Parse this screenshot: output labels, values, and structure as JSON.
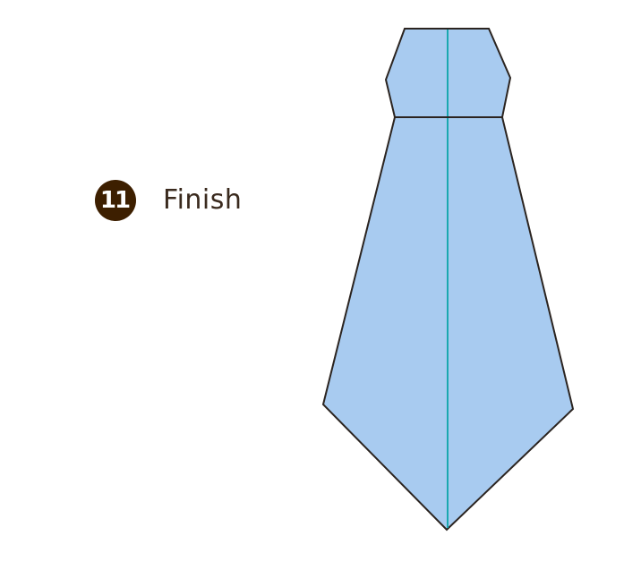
{
  "step": {
    "number": "11",
    "label": "Finish"
  },
  "colors": {
    "paper": "#a8cbf0",
    "outline": "#2b2420",
    "crease": "#1aa8b0",
    "badge": "#3d1f00"
  }
}
